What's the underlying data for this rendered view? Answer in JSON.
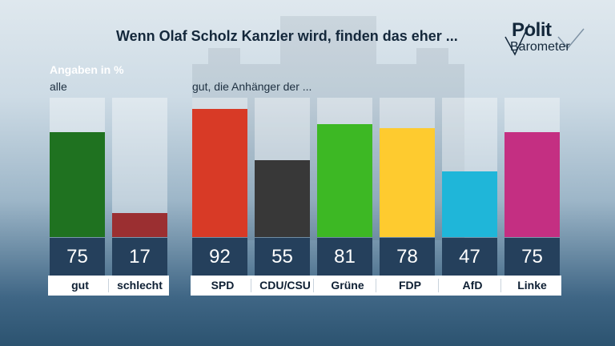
{
  "title": "Wenn Olaf Scholz Kanzler wird, finden das eher ...",
  "logo": {
    "line1": "Polit",
    "line2": "Barometer"
  },
  "chart_data": {
    "type": "bar",
    "unit_label": "Angaben in %",
    "ylim": [
      0,
      100
    ],
    "groups": [
      {
        "label": "alle",
        "categories": [
          "gut",
          "schlecht"
        ],
        "values": [
          75,
          17
        ],
        "colors": [
          "#1f7220",
          "#9b2f31"
        ]
      },
      {
        "label": "gut, die Anhänger der ...",
        "categories": [
          "SPD",
          "CDU/CSU",
          "Grüne",
          "FDP",
          "AfD",
          "Linke"
        ],
        "values": [
          92,
          55,
          81,
          78,
          47,
          75
        ],
        "colors": [
          "#d83a26",
          "#383838",
          "#3db824",
          "#fecb2f",
          "#1fb6d9",
          "#c42f82"
        ]
      }
    ]
  }
}
